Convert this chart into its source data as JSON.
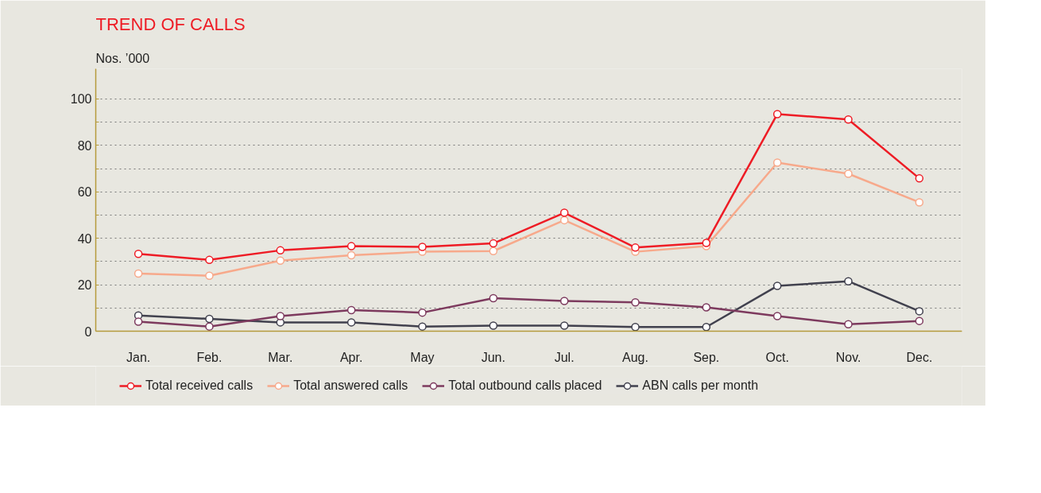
{
  "chart_data": {
    "type": "line",
    "title": "TREND OF CALLS",
    "ylabel": "Nos. ’000",
    "categories": [
      "Jan.",
      "Feb.",
      "Mar.",
      "Apr.",
      "May",
      "Jun.",
      "Jul.",
      "Aug.",
      "Sep.",
      "Oct.",
      "Nov.",
      "Dec."
    ],
    "series": [
      {
        "name": "Total received calls",
        "color": "#ee1c25",
        "values": [
          33.3,
          30.7,
          34.8,
          36.6,
          36.3,
          37.8,
          51,
          36,
          38,
          93.5,
          91.2,
          65.8
        ]
      },
      {
        "name": "Total answered calls",
        "color": "#f7a98b",
        "values": [
          24.8,
          23.9,
          30.4,
          32.7,
          34.2,
          34.5,
          47.8,
          34.2,
          36.6,
          72.6,
          67.8,
          55.5
        ]
      },
      {
        "name": "Total outbound calls placed",
        "color": "#7d3a5e",
        "values": [
          4.1,
          2,
          6.5,
          9.1,
          8,
          14.2,
          13,
          12.4,
          10.3,
          6.5,
          3,
          4.4
        ]
      },
      {
        "name": "ABN calls per month",
        "color": "#41414e",
        "values": [
          6.8,
          5.3,
          3.8,
          3.8,
          2,
          2.4,
          2.4,
          1.8,
          1.8,
          19.5,
          21.5,
          8.6
        ]
      }
    ],
    "ylim": [
      0,
      113
    ],
    "yticks": [
      0,
      {
        "value": 10,
        "label": null
      },
      20,
      {
        "value": 30,
        "label": null
      },
      40,
      {
        "value": 50,
        "label": null
      },
      60,
      {
        "value": 70,
        "label": null
      },
      80,
      {
        "value": 90,
        "label": null
      },
      100
    ],
    "grid": "y",
    "legend": "bottom",
    "marker": "circle",
    "line_style": "solid"
  }
}
